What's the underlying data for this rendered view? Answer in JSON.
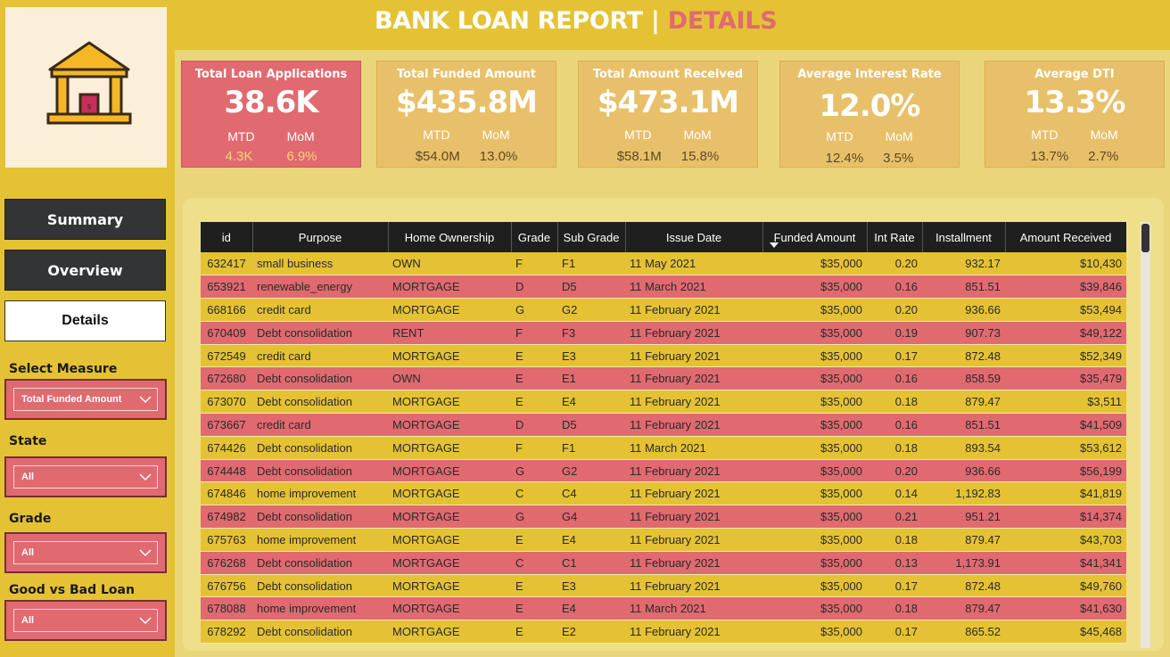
{
  "header": {
    "title_main": "BANK LOAN REPORT | ",
    "title_accent": "DETAILS"
  },
  "nav": {
    "summary": "Summary",
    "overview": "Overview",
    "details": "Details"
  },
  "filters": {
    "measure_label": "Select Measure",
    "measure_value": "Total Funded Amount",
    "state_label": "State",
    "state_value": "All",
    "grade_label": "Grade",
    "grade_value": "All",
    "goodbad_label": "Good vs Bad Loan",
    "goodbad_value": "All"
  },
  "kpis": [
    {
      "title": "Total Loan Applications",
      "value": "38.6K",
      "mtd_label": "MTD",
      "mom_label": "MoM",
      "mtd": "4.3K",
      "mom": "6.9%"
    },
    {
      "title": "Total Funded Amount",
      "value": "$435.8M",
      "mtd_label": "MTD",
      "mom_label": "MoM",
      "mtd": "$54.0M",
      "mom": "13.0%"
    },
    {
      "title": "Total Amount Received",
      "value": "$473.1M",
      "mtd_label": "MTD",
      "mom_label": "MoM",
      "mtd": "$58.1M",
      "mom": "15.8%"
    },
    {
      "title": "Average Interest Rate",
      "value": "12.0%",
      "mtd_label": "MTD",
      "mom_label": "MoM",
      "mtd": "12.4%",
      "mom": "3.5%"
    },
    {
      "title": "Average DTI",
      "value": "13.3%",
      "mtd_label": "MTD",
      "mom_label": "MoM",
      "mtd": "13.7%",
      "mom": "2.7%"
    }
  ],
  "table": {
    "columns": [
      "id",
      "Purpose",
      "Home Ownership",
      "Grade",
      "Sub Grade",
      "Issue Date",
      "Funded Amount",
      "Int Rate",
      "Installment",
      "Amount Received"
    ],
    "rows": [
      [
        "632417",
        "small business",
        "OWN",
        "F",
        "F1",
        "11 May 2021",
        "$35,000",
        "0.20",
        "932.17",
        "$10,430"
      ],
      [
        "653921",
        "renewable_energy",
        "MORTGAGE",
        "D",
        "D5",
        "11 March 2021",
        "$35,000",
        "0.16",
        "851.51",
        "$39,846"
      ],
      [
        "668166",
        "credit card",
        "MORTGAGE",
        "G",
        "G2",
        "11 February 2021",
        "$35,000",
        "0.20",
        "936.66",
        "$53,494"
      ],
      [
        "670409",
        "Debt consolidation",
        "RENT",
        "F",
        "F3",
        "11 February 2021",
        "$35,000",
        "0.19",
        "907.73",
        "$49,122"
      ],
      [
        "672549",
        "credit card",
        "MORTGAGE",
        "E",
        "E3",
        "11 February 2021",
        "$35,000",
        "0.17",
        "872.48",
        "$52,349"
      ],
      [
        "672680",
        "Debt consolidation",
        "OWN",
        "E",
        "E1",
        "11 February 2021",
        "$35,000",
        "0.16",
        "858.59",
        "$35,479"
      ],
      [
        "673070",
        "Debt consolidation",
        "MORTGAGE",
        "E",
        "E4",
        "11 February 2021",
        "$35,000",
        "0.18",
        "879.47",
        "$3,511"
      ],
      [
        "673667",
        "credit card",
        "MORTGAGE",
        "D",
        "D5",
        "11 February 2021",
        "$35,000",
        "0.16",
        "851.51",
        "$41,509"
      ],
      [
        "674426",
        "Debt consolidation",
        "MORTGAGE",
        "F",
        "F1",
        "11 March 2021",
        "$35,000",
        "0.18",
        "893.54",
        "$53,612"
      ],
      [
        "674448",
        "Debt consolidation",
        "MORTGAGE",
        "G",
        "G2",
        "11 February 2021",
        "$35,000",
        "0.20",
        "936.66",
        "$56,199"
      ],
      [
        "674846",
        "home improvement",
        "MORTGAGE",
        "C",
        "C4",
        "11 February 2021",
        "$35,000",
        "0.14",
        "1,192.83",
        "$41,819"
      ],
      [
        "674982",
        "Debt consolidation",
        "MORTGAGE",
        "G",
        "G4",
        "11 February 2021",
        "$35,000",
        "0.21",
        "951.21",
        "$14,374"
      ],
      [
        "675763",
        "home improvement",
        "MORTGAGE",
        "E",
        "E4",
        "11 February 2021",
        "$35,000",
        "0.18",
        "879.47",
        "$43,703"
      ],
      [
        "676268",
        "Debt consolidation",
        "MORTGAGE",
        "C",
        "C1",
        "11 February 2021",
        "$35,000",
        "0.13",
        "1,173.91",
        "$41,341"
      ],
      [
        "676756",
        "Debt consolidation",
        "MORTGAGE",
        "E",
        "E3",
        "11 February 2021",
        "$35,000",
        "0.17",
        "872.48",
        "$49,760"
      ],
      [
        "678088",
        "home improvement",
        "MORTGAGE",
        "E",
        "E4",
        "11 March 2021",
        "$35,000",
        "0.18",
        "879.47",
        "$41,630"
      ],
      [
        "678292",
        "Debt consolidation",
        "MORTGAGE",
        "E",
        "E2",
        "11 February 2021",
        "$35,000",
        "0.17",
        "865.52",
        "$45,468"
      ]
    ]
  },
  "icons": {
    "logo": "bank-building-icon",
    "dropdown": "chevron-down-icon",
    "sort": "sort-descending-icon"
  },
  "colors": {
    "yellow": "#e4c234",
    "pink": "#e06a70",
    "dark": "#333436",
    "card": "#e8c06a"
  }
}
